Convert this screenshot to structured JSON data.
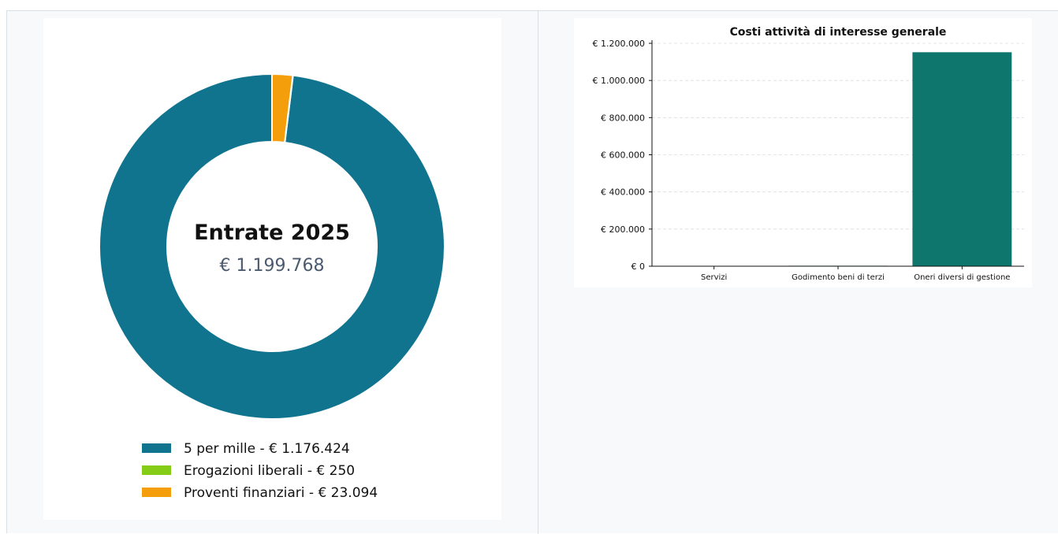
{
  "donut": {
    "title": "Entrate 2025",
    "total": "€ 1.199.768",
    "legend": [
      {
        "label": "5 per mille - € 1.176.424"
      },
      {
        "label": "Erogazioni liberali - € 250"
      },
      {
        "label": "Proventi finanziari - € 23.094"
      }
    ]
  },
  "chart_data": [
    {
      "type": "pie",
      "title": "Entrate 2025",
      "center_value": "€ 1.199.768",
      "categories": [
        "5 per mille",
        "Erogazioni liberali",
        "Proventi finanziari"
      ],
      "values": [
        1176424,
        250,
        23094
      ],
      "colors": [
        "#10748f",
        "#84cc16",
        "#f59e0b"
      ],
      "legend": "bottom"
    },
    {
      "type": "bar",
      "title": "Costi attività di interesse generale",
      "categories": [
        "Servizi",
        "Godimento beni di terzi",
        "Oneri diversi di gestione"
      ],
      "values": [
        1000,
        2500,
        1152000
      ],
      "ylim": [
        0,
        1200000
      ],
      "yticks": [
        0,
        200000,
        400000,
        600000,
        800000,
        1000000,
        1200000
      ],
      "ytick_labels": [
        "€ 0",
        "€ 200.000",
        "€ 400.000",
        "€ 600.000",
        "€ 800.000",
        "€ 1.000.000",
        "€ 1.200.000"
      ],
      "grid": true,
      "colors": [
        "#0f766e"
      ]
    }
  ]
}
